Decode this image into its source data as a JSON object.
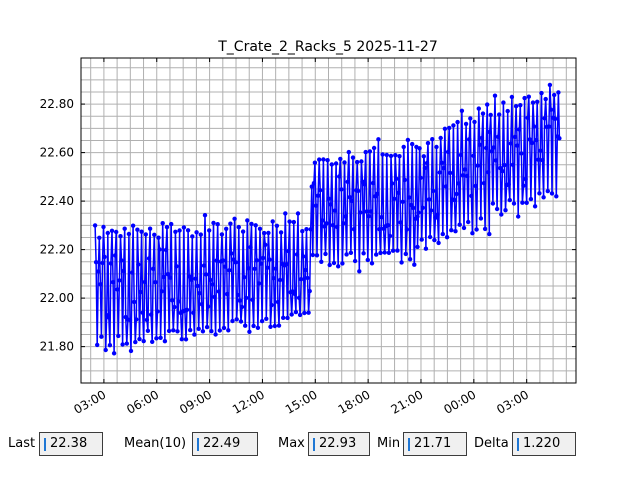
{
  "chart_data": {
    "type": "line",
    "title": "T_Crate_2_Racks_5 2025-11-27",
    "xlabel": "",
    "ylabel": "",
    "x_start_hours": 2.5,
    "x_end_hours": 28.9,
    "xlim_hours": [
      1.7,
      29.8
    ],
    "ylim": [
      21.65,
      22.99
    ],
    "x_tick_labels": [
      "03:00",
      "06:00",
      "09:00",
      "12:00",
      "15:00",
      "18:00",
      "21:00",
      "00:00",
      "03:00"
    ],
    "y_tick_labels": [
      "21.80",
      "22.00",
      "22.20",
      "22.40",
      "22.60",
      "22.80"
    ],
    "y_ticks": [
      21.8,
      22.0,
      22.2,
      22.4,
      22.6,
      22.8
    ],
    "series_color": "#0000ff",
    "grid": true,
    "segments": [
      {
        "h0": 2.5,
        "h1": 14.8,
        "lo0": 21.78,
        "lo1": 21.9,
        "hi0": 22.3,
        "hi1": 22.33
      },
      {
        "h0": 14.8,
        "h1": 20.8,
        "lo0": 22.12,
        "lo1": 22.15,
        "hi0": 22.58,
        "hi1": 22.66
      },
      {
        "h0": 20.8,
        "h1": 24.9,
        "lo0": 22.2,
        "lo1": 22.28,
        "hi0": 22.62,
        "hi1": 22.82
      },
      {
        "h0": 24.9,
        "h1": 28.9,
        "lo0": 22.33,
        "lo1": 22.4,
        "hi0": 22.8,
        "hi1": 22.9
      }
    ],
    "extremes": {
      "max": 22.93,
      "min": 21.71
    }
  },
  "stats": {
    "last_label": "Last",
    "last_value": "22.38",
    "mean_label": "Mean(10)",
    "mean_value": "22.49",
    "max_label": "Max",
    "max_value": "22.93",
    "min_label": "Min",
    "min_value": "21.71",
    "delta_label": "Delta",
    "delta_value": "1.220"
  }
}
